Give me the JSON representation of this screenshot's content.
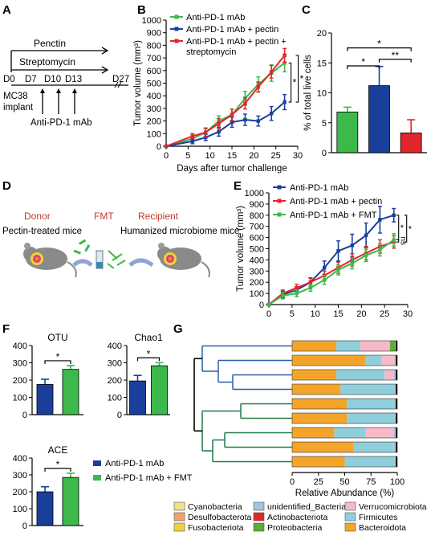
{
  "colors": {
    "green": "#3cb94a",
    "blue": "#1a3f9b",
    "red": "#e2262b",
    "rust": "#c0392b",
    "mouse": "#7f7f7f",
    "tree_blue": "#2b5fa8",
    "tree_green": "#1f7a47"
  },
  "panel_labels": [
    "A",
    "B",
    "C",
    "D",
    "E",
    "F",
    "G"
  ],
  "panel_a": {
    "pectin": "Penctin",
    "streptomycin": "Streptomycin",
    "days": [
      "D0",
      "D7",
      "D10",
      "D13",
      "D27"
    ],
    "implant": "MC38\nimplant",
    "treatment": "Anti-PD-1 mAb"
  },
  "panel_d": {
    "donor": "Donor",
    "fmt": "FMT",
    "recipient": "Recipient",
    "donor_desc": "Pectin-treated mice",
    "recipient_desc": "Humanized microbiome mice"
  },
  "chart_data": [
    {
      "id": "B",
      "type": "line",
      "xlabel": "Days after tumor challenge",
      "ylabel": "Tumor volume (mm³)",
      "xlim": [
        0,
        30
      ],
      "ylim": [
        0,
        1000
      ],
      "xticks": [
        0,
        5,
        10,
        15,
        20,
        25,
        30
      ],
      "yticks": [
        0,
        100,
        200,
        300,
        400,
        500,
        600,
        700,
        800,
        900,
        1000
      ],
      "x": [
        0,
        6,
        9,
        12,
        15,
        18,
        21,
        24,
        27
      ],
      "series": [
        {
          "name": "Anti-PD-1 mAb",
          "color": "green",
          "values": [
            0,
            60,
            110,
            200,
            250,
            380,
            490,
            580,
            660
          ],
          "err": [
            0,
            20,
            30,
            40,
            45,
            55,
            60,
            65,
            70
          ]
        },
        {
          "name": "Anti-PD-1 mAb + pectin",
          "color": "blue",
          "values": [
            0,
            40,
            70,
            115,
            190,
            210,
            200,
            260,
            350
          ],
          "err": [
            0,
            20,
            25,
            35,
            40,
            45,
            40,
            55,
            60
          ]
        },
        {
          "name": "Anti-PD-1 mAb + pectin +\nstreptomycin",
          "color": "red",
          "values": [
            0,
            80,
            110,
            180,
            250,
            340,
            470,
            590,
            720
          ],
          "err": [
            0,
            20,
            35,
            40,
            45,
            45,
            40,
            50,
            55
          ]
        }
      ],
      "annotations": [
        "*",
        "*"
      ]
    },
    {
      "id": "C",
      "type": "bar",
      "ylabel": "% of total live cells",
      "ylim": [
        0,
        20
      ],
      "yticks": [
        0,
        5,
        10,
        15,
        20
      ],
      "categories": [
        "Anti-PD-1 mAb",
        "Anti-PD-1 mAb + pectin",
        "Anti-PD-1 mAb + pectin + streptomycin"
      ],
      "values": [
        6.8,
        11.2,
        3.3
      ],
      "err": [
        0.8,
        3.2,
        2.2
      ],
      "bar_colors": [
        "green",
        "blue",
        "red"
      ],
      "annotations": [
        "*",
        "*",
        "**"
      ]
    },
    {
      "id": "E",
      "type": "line",
      "ylabel": "Tumor volume (mm³)",
      "xlim": [
        0,
        30
      ],
      "ylim": [
        0,
        1000
      ],
      "xticks": [
        0,
        5,
        10,
        15,
        20,
        25,
        30
      ],
      "yticks": [
        0,
        100,
        200,
        300,
        400,
        500,
        600,
        700,
        800,
        900,
        1000
      ],
      "x": [
        0,
        3,
        6,
        9,
        12,
        15,
        18,
        21,
        24,
        27
      ],
      "series": [
        {
          "name": "Anti-PD-1 mAb",
          "color": "blue",
          "values": [
            0,
            90,
            130,
            200,
            330,
            480,
            530,
            620,
            760,
            800
          ],
          "err": [
            0,
            30,
            30,
            40,
            60,
            90,
            100,
            110,
            120,
            60
          ]
        },
        {
          "name": "Anti-PD-1 mAb + pectin",
          "color": "red",
          "values": [
            0,
            100,
            150,
            200,
            260,
            330,
            400,
            460,
            520,
            560
          ],
          "err": [
            0,
            30,
            30,
            35,
            40,
            50,
            55,
            60,
            60,
            55
          ]
        },
        {
          "name": "Anti-PD-1 mAb + FMT",
          "color": "green",
          "values": [
            0,
            80,
            100,
            150,
            220,
            310,
            370,
            440,
            490,
            580
          ],
          "err": [
            0,
            30,
            30,
            30,
            40,
            45,
            50,
            55,
            55,
            55
          ]
        }
      ],
      "annotations": [
        "*",
        "ns",
        "*"
      ]
    },
    {
      "id": "F-OTU",
      "type": "bar",
      "title": "OTU",
      "ylim": [
        0,
        400
      ],
      "yticks": [
        0,
        100,
        200,
        300,
        400
      ],
      "categories": [
        "Anti-PD-1 mAb",
        "Anti-PD-1 mAb + FMT"
      ],
      "values": [
        175,
        262
      ],
      "err": [
        30,
        22
      ],
      "bar_colors": [
        "blue",
        "green"
      ],
      "annotations": [
        "*"
      ]
    },
    {
      "id": "F-Chao1",
      "type": "bar",
      "title": "Chao1",
      "ylim": [
        0,
        400
      ],
      "yticks": [
        0,
        100,
        200,
        300,
        400
      ],
      "categories": [
        "Anti-PD-1 mAb",
        "Anti-PD-1 mAb + FMT"
      ],
      "values": [
        195,
        283
      ],
      "err": [
        32,
        18
      ],
      "bar_colors": [
        "blue",
        "green"
      ],
      "annotations": [
        "*"
      ]
    },
    {
      "id": "F-ACE",
      "type": "bar",
      "title": "ACE",
      "ylim": [
        0,
        400
      ],
      "yticks": [
        0,
        100,
        200,
        300,
        400
      ],
      "categories": [
        "Anti-PD-1 mAb",
        "Anti-PD-1 mAb + FMT"
      ],
      "values": [
        200,
        285
      ],
      "err": [
        30,
        25
      ],
      "bar_colors": [
        "blue",
        "green"
      ],
      "legend": [
        "Anti-PD-1 mAb",
        "Anti-PD-1 mAb + FMT"
      ],
      "annotations": [
        "*"
      ]
    },
    {
      "id": "G",
      "type": "bar",
      "xlabel": "Relative Abundance (%)",
      "xlim": [
        0,
        100
      ],
      "xticks": [
        0,
        25,
        50,
        75,
        100
      ],
      "categories": [
        "Bacteroidota",
        "Firmicutes",
        "Verrucomicrobiota",
        "Proteobacteria",
        "unidentified_Bacteria",
        "Cyanobacteria",
        "Desulfobacterota",
        "Actinobacteriota",
        "Fusobacteriota"
      ],
      "category_colors": {
        "Bacteroidota": "#f5a42a",
        "Firmicutes": "#8fcfdc",
        "Verrucomicrobiota": "#f5b9c8",
        "Proteobacteria": "#5bad35",
        "unidentified_Bacteria": "#9fc5e0",
        "Cyanobacteria": "#f0e08a",
        "Desulfobacterota": "#f1a36b",
        "Actinobacteriota": "#e2262b",
        "Fusobacteriota": "#f0d040"
      },
      "samples": [
        [
          42,
          23,
          28,
          5,
          2
        ],
        [
          70,
          15,
          13,
          0,
          2
        ],
        [
          42,
          46,
          9,
          0,
          3
        ],
        [
          46,
          51,
          0,
          0,
          3
        ],
        [
          52,
          44,
          0,
          0,
          4
        ],
        [
          52,
          45,
          0,
          0,
          3
        ],
        [
          40,
          30,
          27,
          0,
          3
        ],
        [
          58,
          38,
          0,
          0,
          4
        ],
        [
          50,
          48,
          0,
          0,
          2
        ]
      ],
      "legend": [
        "Cyanobacteria",
        "unidentified_Bacteria",
        "Verrucomicrobiota",
        "Desulfobacterota",
        "Actinobacteriota",
        "Firmicutes",
        "Fusobacteriota",
        "Proteobacteria",
        "Bacteroidota"
      ]
    }
  ]
}
